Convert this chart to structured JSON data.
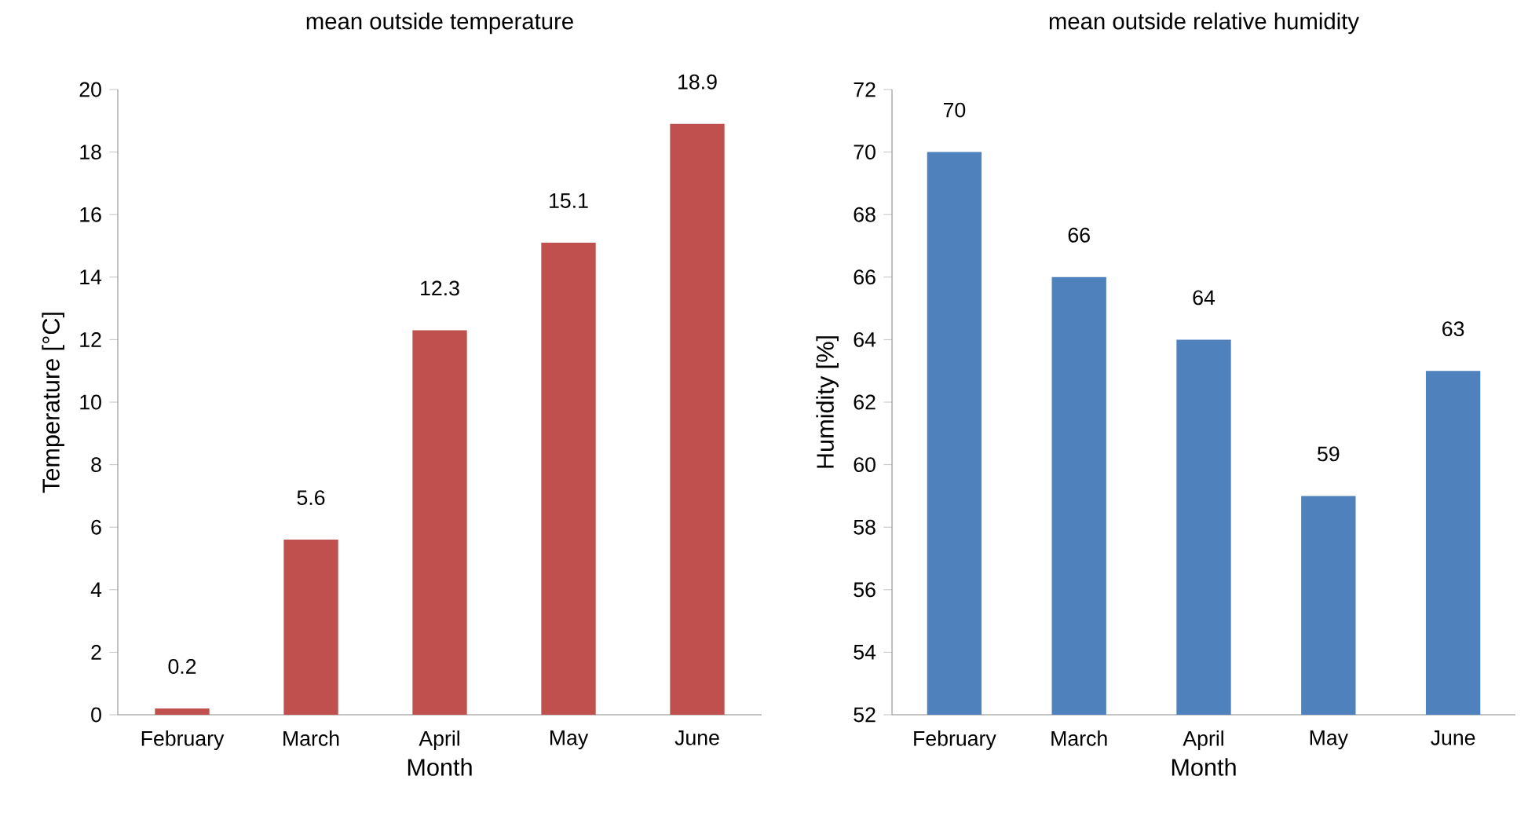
{
  "chart_data": [
    {
      "type": "bar",
      "title": "mean outside temperature",
      "xlabel": "Month",
      "ylabel": "Temperature [°C]",
      "categories": [
        "February",
        "March",
        "April",
        "May",
        "June"
      ],
      "values": [
        0.2,
        5.6,
        12.3,
        15.1,
        18.9
      ],
      "color": "#c0504d",
      "ylim": [
        0,
        20
      ],
      "yticks": [
        0,
        2,
        4,
        6,
        8,
        10,
        12,
        14,
        16,
        18,
        20
      ],
      "data_labels": true,
      "grid": false
    },
    {
      "type": "bar",
      "title": "mean outside relative humidity",
      "xlabel": "Month",
      "ylabel": "Humidity [%]",
      "categories": [
        "February",
        "March",
        "April",
        "May",
        "June"
      ],
      "values": [
        70,
        66,
        64,
        59,
        63
      ],
      "color": "#4f81bd",
      "ylim": [
        52,
        72
      ],
      "yticks": [
        52,
        54,
        56,
        58,
        60,
        62,
        64,
        66,
        68,
        70,
        72
      ],
      "data_labels": true,
      "grid": false
    }
  ]
}
